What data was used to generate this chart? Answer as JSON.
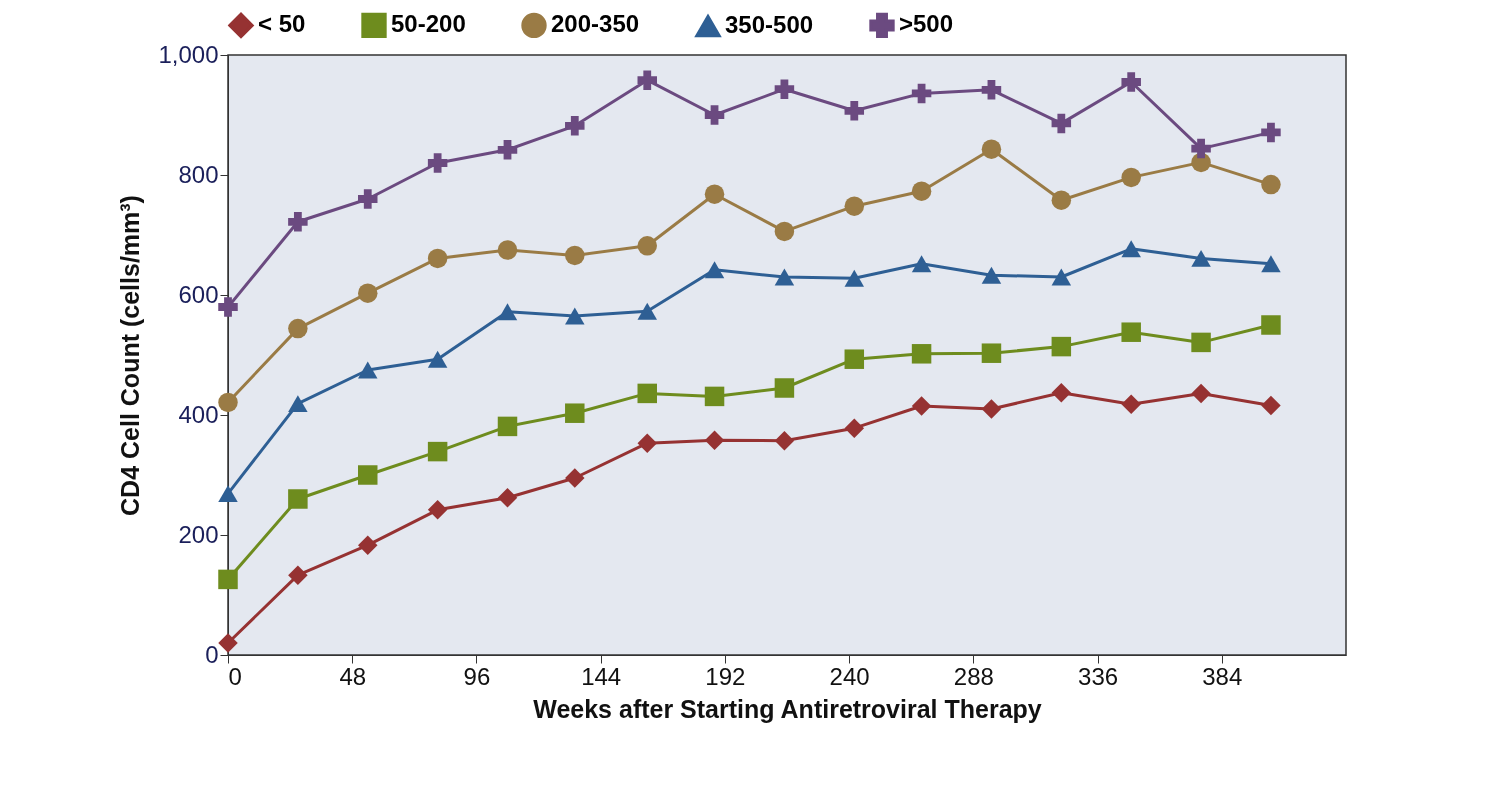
{
  "chart_data": {
    "type": "line",
    "xlabel": "Weeks after Starting Antiretroviral Therapy",
    "ylabel": "CD4 Cell Count (cells/mm³)",
    "x": [
      0,
      27,
      54,
      81,
      108,
      134,
      162,
      188,
      215,
      242,
      268,
      295,
      322,
      349,
      376,
      403
    ],
    "xlim": [
      0,
      432
    ],
    "xticks": [
      0,
      48,
      96,
      144,
      192,
      240,
      288,
      336,
      384
    ],
    "ylim": [
      0,
      1000
    ],
    "yticks": [
      0,
      200,
      400,
      600,
      800,
      {
        "value": 1000,
        "label": "1,000"
      }
    ],
    "grid": false,
    "legend": "top",
    "line_style": "solid",
    "series": [
      {
        "name": "< 50",
        "color": "#963232",
        "marker": "diamond",
        "values": [
          20,
          133,
          183,
          242,
          262,
          295,
          353,
          358,
          357,
          378,
          415,
          410,
          437,
          418,
          436,
          416
        ]
      },
      {
        "name": "50-200",
        "color": "#6e8c1e",
        "marker": "square",
        "values": [
          126,
          260,
          300,
          339,
          381,
          403,
          436,
          431,
          445,
          493,
          502,
          503,
          514,
          538,
          521,
          550
        ]
      },
      {
        "name": "200-350",
        "color": "#9a7b45",
        "marker": "circle",
        "values": [
          421,
          544,
          603,
          661,
          675,
          666,
          682,
          768,
          706,
          748,
          773,
          843,
          758,
          796,
          821,
          784
        ]
      },
      {
        "name": "350-500",
        "color": "#2e5f94",
        "marker": "triangle",
        "values": [
          269,
          419,
          475,
          493,
          572,
          565,
          573,
          642,
          630,
          628,
          652,
          633,
          630,
          677,
          661,
          652
        ]
      },
      {
        "name": ">500",
        "color": "#6b4a80",
        "marker": "cross",
        "values": [
          580,
          722,
          760,
          820,
          842,
          882,
          958,
          900,
          943,
          907,
          936,
          942,
          886,
          955,
          844,
          871
        ]
      }
    ]
  }
}
